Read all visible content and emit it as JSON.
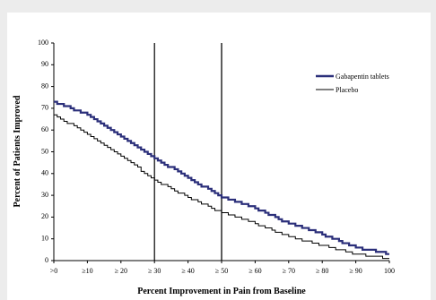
{
  "chart_data": {
    "type": "line",
    "xlabel": "Percent Improvement in Pain from Baseline",
    "ylabel": "Percent of Patients Improved",
    "x": [
      0,
      10,
      20,
      30,
      40,
      50,
      60,
      70,
      80,
      90,
      100
    ],
    "x_tick_labels": [
      ">0",
      "≥10",
      "≥ 20",
      "≥ 30",
      "≥ 40",
      "≥ 50",
      "≥ 60",
      "≥ 70",
      "≥ 80",
      "≥ 90",
      "100"
    ],
    "ylim": [
      0,
      100
    ],
    "y_ticks": [
      0,
      10,
      20,
      30,
      40,
      50,
      60,
      70,
      80,
      90,
      100
    ],
    "series": [
      {
        "name": "Gabapentin tablets",
        "color": "#2b2f7a",
        "values": [
          73,
          67,
          57,
          47,
          38,
          29,
          24,
          17,
          12,
          6,
          3
        ]
      },
      {
        "name": "Placebo",
        "color": "#000000",
        "values": [
          67,
          58,
          48,
          37,
          29,
          22,
          17,
          11,
          7,
          3,
          1
        ]
      }
    ],
    "reference_lines": [
      {
        "x": 30,
        "color": "#000000"
      },
      {
        "x": 50,
        "color": "#999999"
      },
      {
        "x": 50,
        "color": "#000000"
      }
    ],
    "legend_position": "right"
  }
}
